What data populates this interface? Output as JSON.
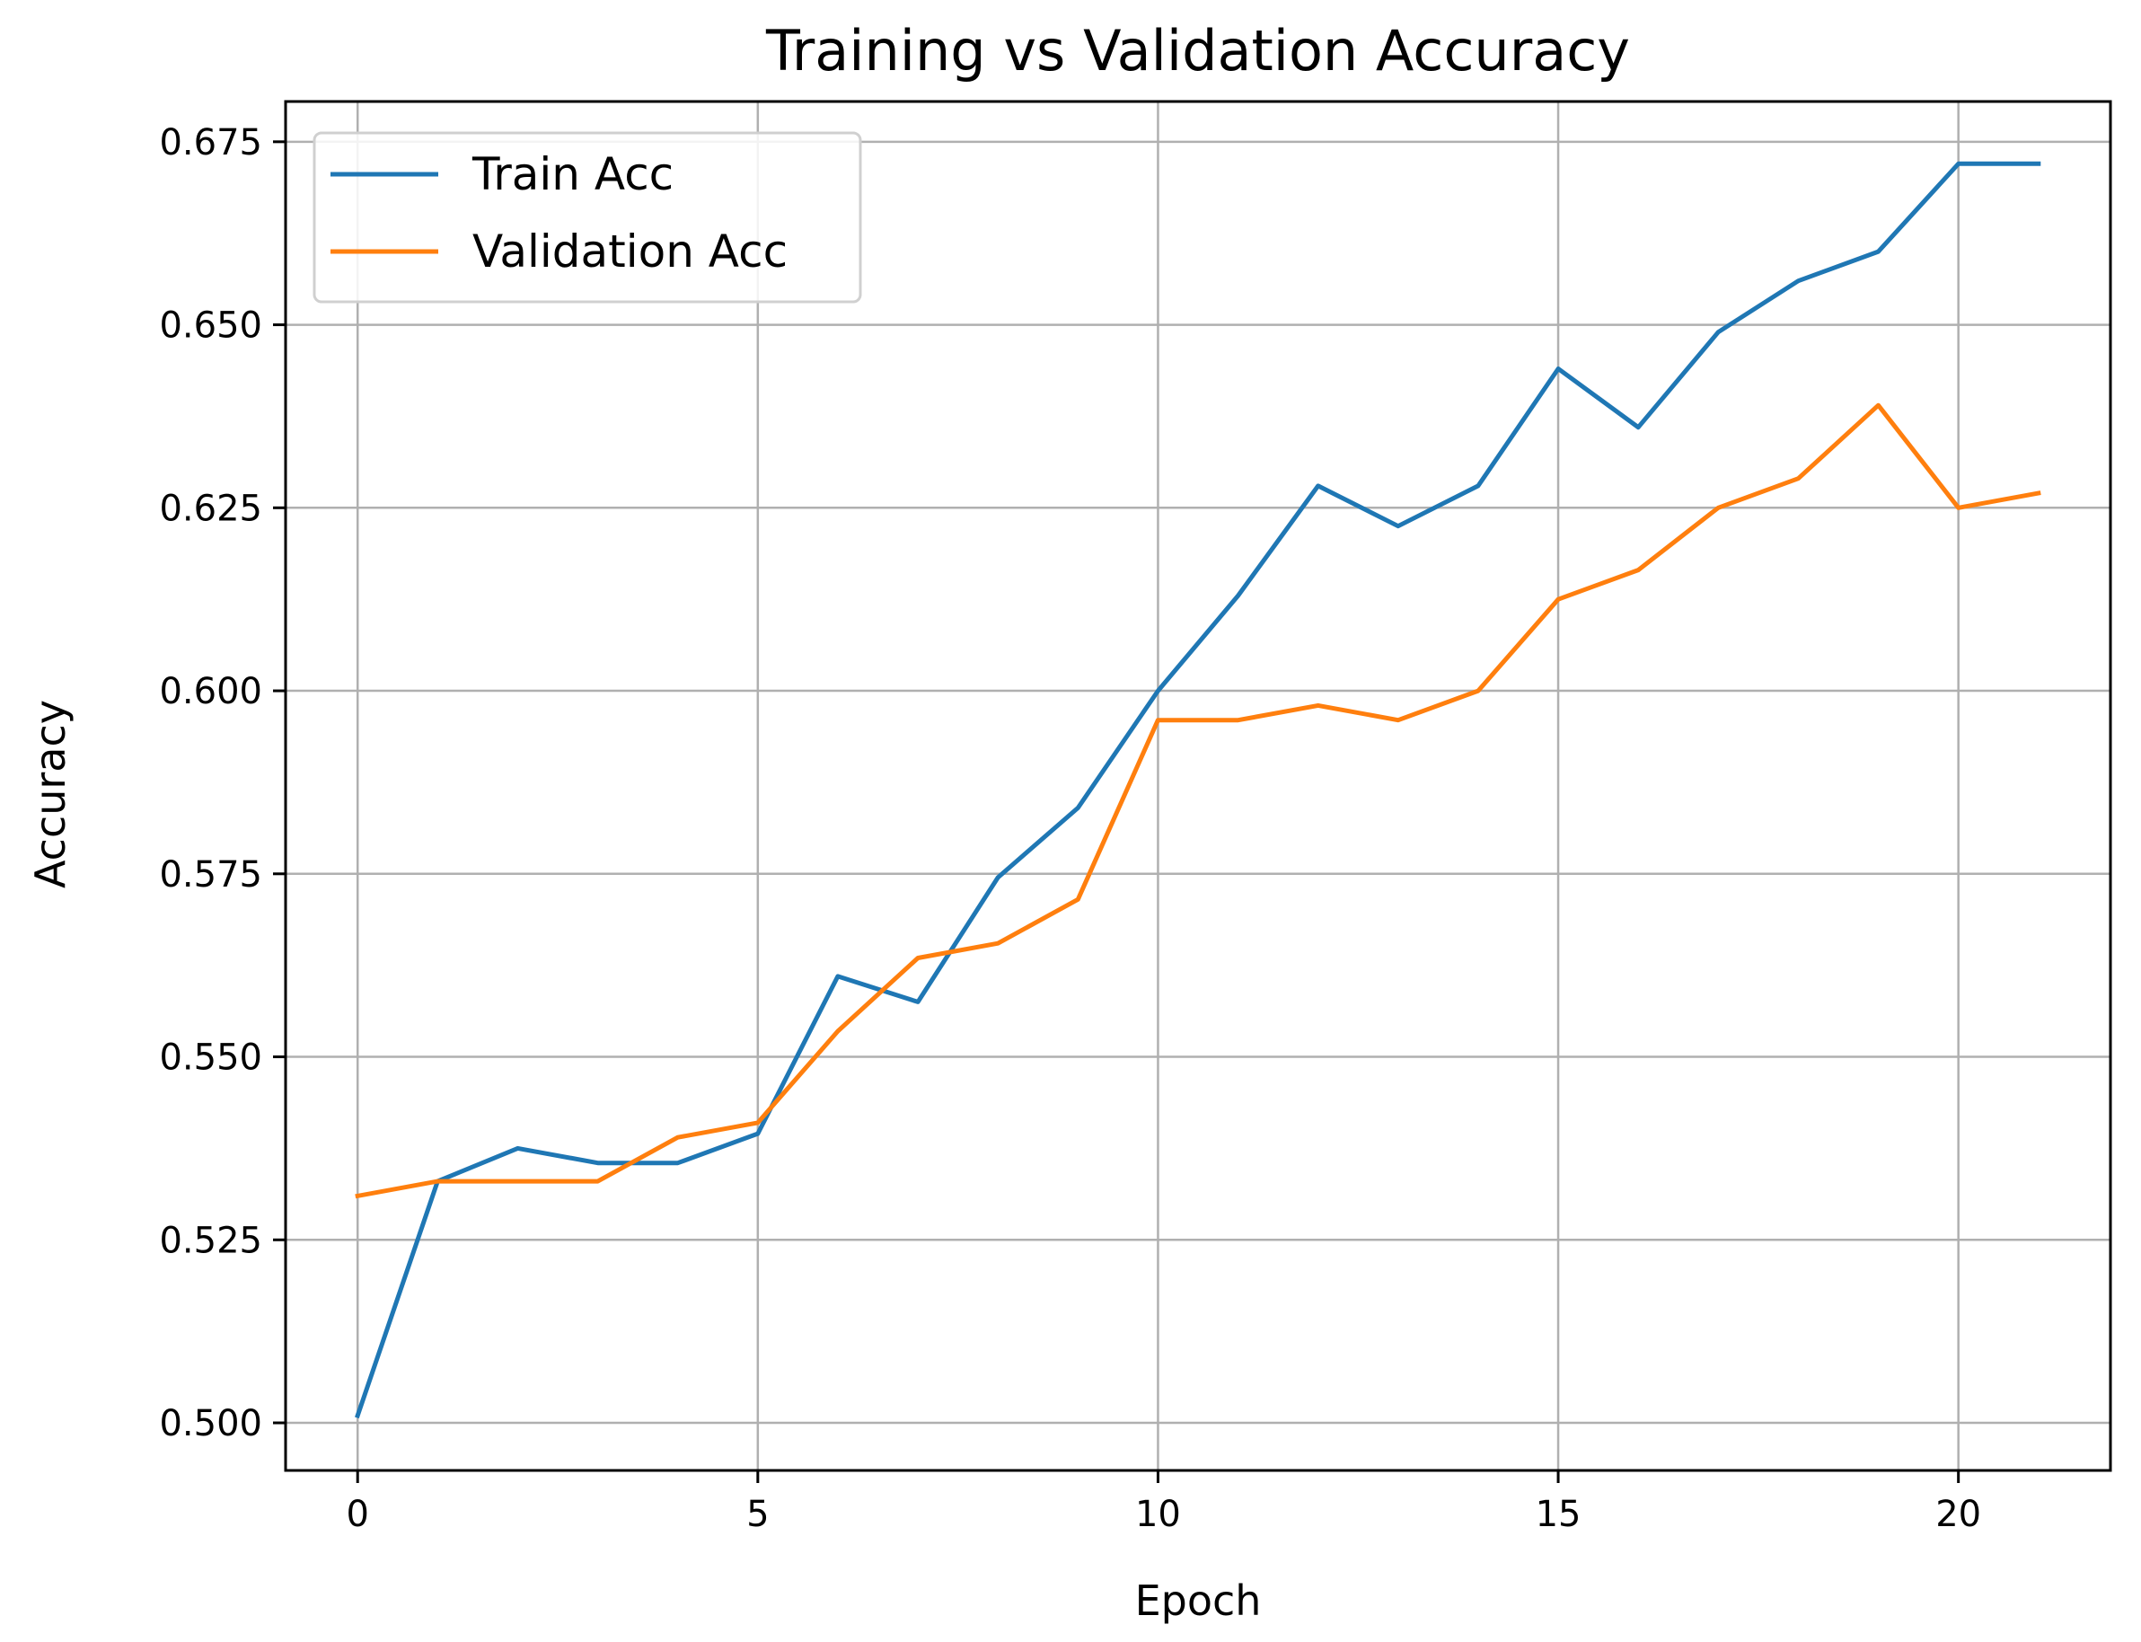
{
  "chart_data": {
    "type": "line",
    "title": "Training vs Validation Accuracy",
    "xlabel": "Epoch",
    "ylabel": "Accuracy",
    "xlim": [
      -0.9,
      21.9
    ],
    "ylim": [
      0.4935,
      0.6805
    ],
    "xticks": [
      0,
      5,
      10,
      15,
      20
    ],
    "yticks": [
      0.5,
      0.525,
      0.55,
      0.575,
      0.6,
      0.625,
      0.65,
      0.675
    ],
    "grid": true,
    "legend": "top-left",
    "x": [
      0,
      1,
      2,
      3,
      4,
      5,
      6,
      7,
      8,
      9,
      10,
      11,
      12,
      13,
      14,
      15,
      16,
      17,
      18,
      19,
      20,
      21
    ],
    "series": [
      {
        "name": "Train Acc",
        "color": "#1f77b4",
        "values": [
          0.501,
          0.533,
          0.5375,
          0.5355,
          0.5355,
          0.5395,
          0.561,
          0.5575,
          0.5745,
          0.584,
          0.6,
          0.613,
          0.628,
          0.6225,
          0.628,
          0.644,
          0.636,
          0.649,
          0.656,
          0.66,
          0.672,
          0.672
        ]
      },
      {
        "name": "Validation Acc",
        "color": "#ff7f0e",
        "values": [
          0.531,
          0.533,
          0.533,
          0.533,
          0.539,
          0.541,
          0.5535,
          0.5635,
          0.5655,
          0.5715,
          0.596,
          0.596,
          0.598,
          0.596,
          0.6,
          0.6125,
          0.6165,
          0.625,
          0.629,
          0.639,
          0.625,
          0.627
        ]
      }
    ]
  }
}
